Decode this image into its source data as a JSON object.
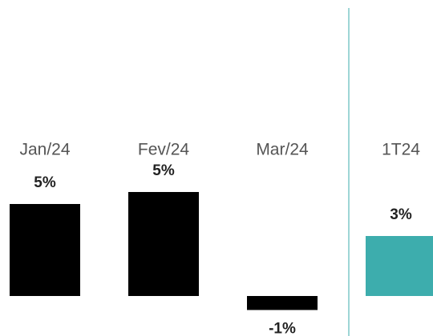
{
  "chart_data": {
    "type": "bar",
    "categories": [
      "Jan/24",
      "Fev/24",
      "Mar/24",
      "1T24"
    ],
    "values": [
      4.6,
      5.2,
      -0.7,
      3.0
    ],
    "value_labels": [
      "5%",
      "5%",
      "-1%",
      "3%"
    ],
    "colors": [
      "#000000",
      "#000000",
      "#000000",
      "#3dadad"
    ],
    "divider_color": "#3dadad"
  }
}
